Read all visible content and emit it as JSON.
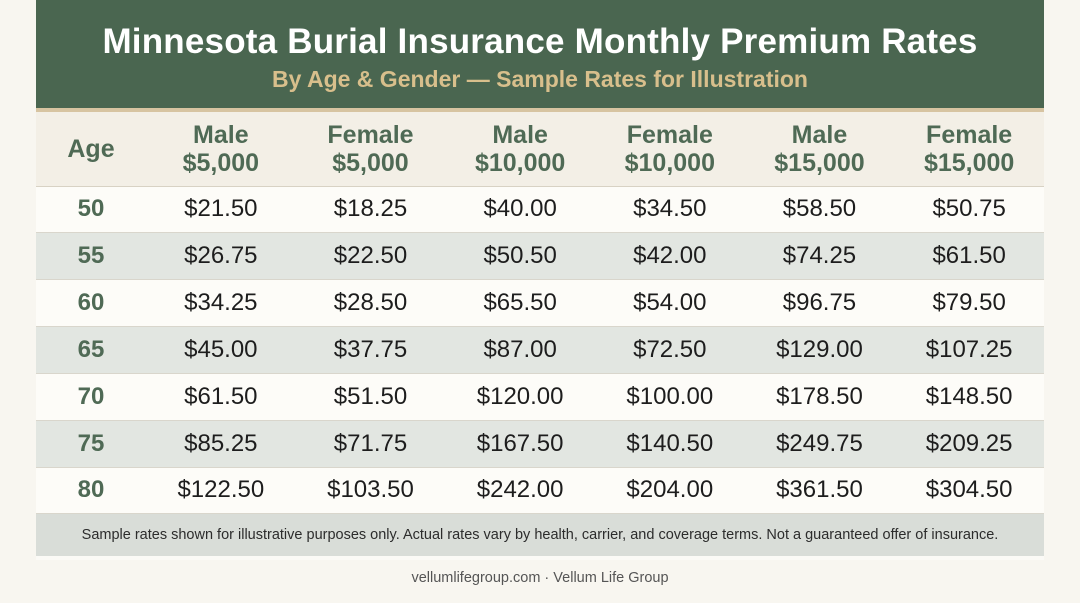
{
  "title": "Minnesota Burial Insurance Monthly Premium Rates",
  "subtitle": "By Age & Gender — Sample Rates for Illustration",
  "columns": [
    {
      "line1": "Age",
      "line2": ""
    },
    {
      "line1": "Male",
      "line2": "$5,000"
    },
    {
      "line1": "Female",
      "line2": "$5,000"
    },
    {
      "line1": "Male",
      "line2": "$10,000"
    },
    {
      "line1": "Female",
      "line2": "$10,000"
    },
    {
      "line1": "Male",
      "line2": "$15,000"
    },
    {
      "line1": "Female",
      "line2": "$15,000"
    }
  ],
  "rows": [
    [
      "50",
      "$21.50",
      "$18.25",
      "$40.00",
      "$34.50",
      "$58.50",
      "$50.75"
    ],
    [
      "55",
      "$26.75",
      "$22.50",
      "$50.50",
      "$42.00",
      "$74.25",
      "$61.50"
    ],
    [
      "60",
      "$34.25",
      "$28.50",
      "$65.50",
      "$54.00",
      "$96.75",
      "$79.50"
    ],
    [
      "65",
      "$45.00",
      "$37.75",
      "$87.00",
      "$72.50",
      "$129.00",
      "$107.25"
    ],
    [
      "70",
      "$61.50",
      "$51.50",
      "$120.00",
      "$100.00",
      "$178.50",
      "$148.50"
    ],
    [
      "75",
      "$85.25",
      "$71.75",
      "$167.50",
      "$140.50",
      "$249.75",
      "$209.25"
    ],
    [
      "80",
      "$122.50",
      "$103.50",
      "$242.00",
      "$204.00",
      "$361.50",
      "$304.50"
    ]
  ],
  "note": "Sample rates shown for illustrative purposes only. Actual rates vary by health, carrier, and coverage terms. Not a guaranteed offer of insurance.",
  "footer": "vellumlifegroup.com · Vellum Life Group",
  "colors": {
    "header_bg": "#4a6650",
    "subtitle": "#d8bf8c",
    "accent_text": "#4f6a55",
    "stripe": "#e2e6e1"
  }
}
